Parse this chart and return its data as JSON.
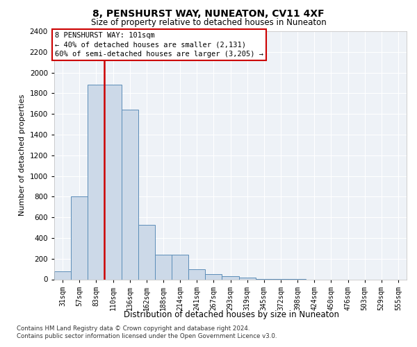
{
  "title": "8, PENSHURST WAY, NUNEATON, CV11 4XF",
  "subtitle": "Size of property relative to detached houses in Nuneaton",
  "xlabel": "Distribution of detached houses by size in Nuneaton",
  "ylabel": "Number of detached properties",
  "categories": [
    "31sqm",
    "57sqm",
    "83sqm",
    "110sqm",
    "136sqm",
    "162sqm",
    "188sqm",
    "214sqm",
    "241sqm",
    "267sqm",
    "293sqm",
    "319sqm",
    "345sqm",
    "372sqm",
    "398sqm",
    "424sqm",
    "450sqm",
    "476sqm",
    "503sqm",
    "529sqm",
    "555sqm"
  ],
  "bar_heights": [
    75,
    800,
    1880,
    1880,
    1640,
    530,
    235,
    235,
    100,
    50,
    30,
    15,
    5,
    5,
    5,
    0,
    0,
    0,
    0,
    0,
    0
  ],
  "bar_color": "#ccd9e8",
  "bar_edge_color": "#5b8db8",
  "property_line_x": 2.5,
  "property_line_color": "#cc0000",
  "annotation_text": "8 PENSHURST WAY: 101sqm\n← 40% of detached houses are smaller (2,131)\n60% of semi-detached houses are larger (3,205) →",
  "annotation_box_color": "#cc0000",
  "ylim": [
    0,
    2400
  ],
  "yticks": [
    0,
    200,
    400,
    600,
    800,
    1000,
    1200,
    1400,
    1600,
    1800,
    2000,
    2200,
    2400
  ],
  "footer1": "Contains HM Land Registry data © Crown copyright and database right 2024.",
  "footer2": "Contains public sector information licensed under the Open Government Licence v3.0.",
  "bg_color": "#eef2f7",
  "grid_color": "#ffffff"
}
